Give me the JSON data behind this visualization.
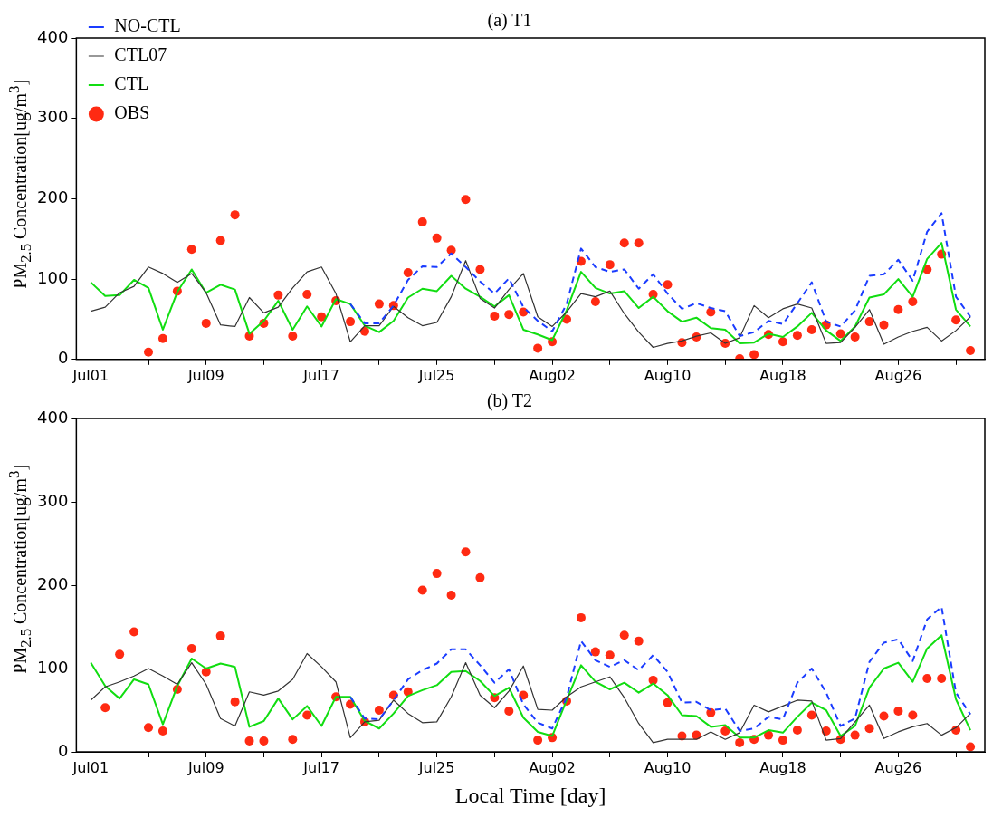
{
  "chart_data": [
    {
      "type": "line",
      "title": "(a) T1",
      "ylabel": "PM$_{2.5}$ Concentration[ug/m$^{3}$]",
      "x": [
        "--07-01",
        "--07-02",
        "--07-03",
        "--07-04",
        "--07-05",
        "--07-06",
        "--07-07",
        "--07-08",
        "--07-09",
        "--07-10",
        "--07-11",
        "--07-12",
        "--07-13",
        "--07-14",
        "--07-15",
        "--07-16",
        "--07-17",
        "--07-18",
        "--07-19",
        "--07-20",
        "--07-21",
        "--07-22",
        "--07-23",
        "--07-24",
        "--07-25",
        "--07-26",
        "--07-27",
        "--07-28",
        "--07-29",
        "--07-30",
        "--07-31",
        "--08-01",
        "--08-02",
        "--08-03",
        "--08-04",
        "--08-05",
        "--08-06",
        "--08-07",
        "--08-08",
        "--08-09",
        "--08-10",
        "--08-11",
        "--08-12",
        "--08-13",
        "--08-14",
        "--08-15",
        "--08-16",
        "--08-17",
        "--08-18",
        "--08-19",
        "--08-20",
        "--08-21",
        "--08-22",
        "--08-23",
        "--08-24",
        "--08-25",
        "--08-26",
        "--08-27",
        "--08-28",
        "--08-29",
        "--08-30",
        "--08-31"
      ],
      "xlim": [
        "--06-30",
        "--09-01"
      ],
      "xticks": [
        {
          "value": "--07-01",
          "label": "Jul01"
        },
        {
          "value": "--07-05",
          "label": null
        },
        {
          "value": "--07-09",
          "label": "Jul09"
        },
        {
          "value": "--07-13",
          "label": null
        },
        {
          "value": "--07-17",
          "label": "Jul17"
        },
        {
          "value": "--07-21",
          "label": null
        },
        {
          "value": "--07-25",
          "label": "Jul25"
        },
        {
          "value": "--07-29",
          "label": null
        },
        {
          "value": "--08-02",
          "label": "Aug02"
        },
        {
          "value": "--08-06",
          "label": null
        },
        {
          "value": "--08-10",
          "label": "Aug10"
        },
        {
          "value": "--08-14",
          "label": null
        },
        {
          "value": "--08-18",
          "label": "Aug18"
        },
        {
          "value": "--08-22",
          "label": null
        },
        {
          "value": "--08-26",
          "label": "Aug26"
        },
        {
          "value": "--08-30",
          "label": null
        }
      ],
      "ylim": [
        0,
        400
      ],
      "yticks": [
        0,
        100,
        200,
        300,
        400
      ],
      "grid": false,
      "legend": "top left",
      "series": [
        {
          "name": "NO-CTL",
          "type": "line",
          "color": "#1a3cff",
          "line_style": "dashed",
          "marker": "none",
          "values": [
            null,
            null,
            null,
            null,
            null,
            null,
            null,
            null,
            null,
            null,
            null,
            null,
            null,
            null,
            null,
            null,
            null,
            null,
            69,
            45,
            45,
            67,
            99,
            116,
            115,
            132,
            115,
            97,
            82,
            101,
            65,
            48,
            35,
            69,
            138,
            115,
            109,
            112,
            88,
            106,
            82,
            63,
            70,
            64,
            60,
            29,
            34,
            48,
            44,
            70,
            96,
            47,
            41,
            61,
            104,
            106,
            124,
            98,
            159,
            182,
            78,
            53
          ]
        },
        {
          "name": "CTL07",
          "type": "line",
          "color": "#333333",
          "line_style": "solid",
          "marker": "none",
          "values": [
            60,
            65,
            83,
            91,
            115,
            107,
            96,
            107,
            83,
            43,
            41,
            77,
            58,
            65,
            89,
            109,
            115,
            82,
            22,
            42,
            42,
            66,
            52,
            42,
            46,
            78,
            123,
            76,
            64,
            87,
            107,
            53,
            41,
            59,
            82,
            78,
            85,
            57,
            34,
            15,
            20,
            23,
            29,
            33,
            20,
            27,
            67,
            52,
            63,
            69,
            64,
            20,
            21,
            40,
            62,
            19,
            28,
            35,
            40,
            23,
            36,
            53
          ]
        },
        {
          "name": "CTL",
          "type": "line",
          "color": "#11dd11",
          "line_style": "solid",
          "marker": "none",
          "values": [
            96,
            79,
            80,
            99,
            89,
            37,
            84,
            112,
            83,
            93,
            87,
            32,
            48,
            73,
            37,
            66,
            41,
            75,
            69,
            42,
            34,
            48,
            77,
            88,
            85,
            104,
            88,
            78,
            66,
            80,
            37,
            31,
            24,
            61,
            109,
            89,
            82,
            85,
            64,
            78,
            60,
            47,
            52,
            39,
            37,
            20,
            21,
            32,
            28,
            41,
            58,
            36,
            23,
            41,
            77,
            81,
            100,
            78,
            125,
            145,
            62,
            41
          ]
        },
        {
          "name": "OBS",
          "type": "scatter",
          "color": "#ff2a12",
          "marker": "circle",
          "values": [
            null,
            null,
            null,
            null,
            9,
            26,
            85,
            137,
            45,
            148,
            180,
            29,
            45,
            80,
            29,
            81,
            53,
            73,
            47,
            35,
            69,
            67,
            108,
            171,
            151,
            136,
            199,
            112,
            54,
            56,
            59,
            14,
            22,
            50,
            122,
            72,
            118,
            145,
            145,
            81,
            93,
            21,
            28,
            59,
            20,
            1,
            6,
            31,
            22,
            30,
            37,
            43,
            32,
            28,
            47,
            43,
            62,
            72,
            112,
            131,
            49,
            11
          ]
        }
      ]
    },
    {
      "type": "line",
      "title": "(b) T2",
      "ylabel": "PM$_{2.5}$ Concentration[ug/m$^{3}$]",
      "xlabel": "Local Time [day]",
      "x": [
        "--07-01",
        "--07-02",
        "--07-03",
        "--07-04",
        "--07-05",
        "--07-06",
        "--07-07",
        "--07-08",
        "--07-09",
        "--07-10",
        "--07-11",
        "--07-12",
        "--07-13",
        "--07-14",
        "--07-15",
        "--07-16",
        "--07-17",
        "--07-18",
        "--07-19",
        "--07-20",
        "--07-21",
        "--07-22",
        "--07-23",
        "--07-24",
        "--07-25",
        "--07-26",
        "--07-27",
        "--07-28",
        "--07-29",
        "--07-30",
        "--07-31",
        "--08-01",
        "--08-02",
        "--08-03",
        "--08-04",
        "--08-05",
        "--08-06",
        "--08-07",
        "--08-08",
        "--08-09",
        "--08-10",
        "--08-11",
        "--08-12",
        "--08-13",
        "--08-14",
        "--08-15",
        "--08-16",
        "--08-17",
        "--08-18",
        "--08-19",
        "--08-20",
        "--08-21",
        "--08-22",
        "--08-23",
        "--08-24",
        "--08-25",
        "--08-26",
        "--08-27",
        "--08-28",
        "--08-29",
        "--08-30",
        "--08-31"
      ],
      "xlim": [
        "--06-30",
        "--09-01"
      ],
      "xticks": [
        {
          "value": "--07-01",
          "label": "Jul01"
        },
        {
          "value": "--07-05",
          "label": null
        },
        {
          "value": "--07-09",
          "label": "Jul09"
        },
        {
          "value": "--07-13",
          "label": null
        },
        {
          "value": "--07-17",
          "label": "Jul17"
        },
        {
          "value": "--07-21",
          "label": null
        },
        {
          "value": "--07-25",
          "label": "Jul25"
        },
        {
          "value": "--07-29",
          "label": null
        },
        {
          "value": "--08-02",
          "label": "Aug02"
        },
        {
          "value": "--08-06",
          "label": null
        },
        {
          "value": "--08-10",
          "label": "Aug10"
        },
        {
          "value": "--08-14",
          "label": null
        },
        {
          "value": "--08-18",
          "label": "Aug18"
        },
        {
          "value": "--08-22",
          "label": null
        },
        {
          "value": "--08-26",
          "label": "Aug26"
        },
        {
          "value": "--08-30",
          "label": null
        }
      ],
      "ylim": [
        0,
        400
      ],
      "yticks": [
        0,
        100,
        200,
        300,
        400
      ],
      "grid": false,
      "series": [
        {
          "type": "line",
          "color": "#1a3cff",
          "line_style": "dashed",
          "marker": "none",
          "values": [
            null,
            null,
            null,
            null,
            null,
            null,
            null,
            null,
            null,
            null,
            null,
            null,
            null,
            null,
            null,
            null,
            null,
            null,
            66,
            40,
            39,
            62,
            87,
            98,
            106,
            123,
            123,
            104,
            83,
            99,
            57,
            35,
            28,
            65,
            133,
            110,
            102,
            110,
            98,
            116,
            96,
            59,
            60,
            50,
            52,
            25,
            28,
            42,
            39,
            83,
            100,
            71,
            31,
            40,
            108,
            131,
            135,
            109,
            159,
            174,
            71,
            45
          ]
        },
        {
          "type": "line",
          "color": "#333333",
          "line_style": "solid",
          "marker": "none",
          "values": [
            62,
            78,
            84,
            91,
            100,
            91,
            81,
            107,
            81,
            40,
            31,
            72,
            68,
            73,
            87,
            118,
            102,
            84,
            17,
            36,
            38,
            62,
            46,
            35,
            36,
            66,
            107,
            68,
            53,
            73,
            103,
            51,
            50,
            66,
            78,
            84,
            90,
            65,
            34,
            11,
            15,
            15,
            15,
            24,
            15,
            23,
            56,
            48,
            55,
            62,
            61,
            14,
            16,
            36,
            56,
            16,
            24,
            30,
            34,
            20,
            29,
            46
          ]
        },
        {
          "type": "line",
          "color": "#11dd11",
          "line_style": "solid",
          "marker": "none",
          "values": [
            107,
            79,
            64,
            87,
            81,
            33,
            79,
            112,
            100,
            106,
            102,
            30,
            37,
            64,
            39,
            55,
            31,
            66,
            66,
            37,
            28,
            46,
            67,
            74,
            80,
            96,
            97,
            85,
            67,
            77,
            41,
            24,
            19,
            62,
            104,
            84,
            75,
            83,
            71,
            82,
            68,
            44,
            43,
            30,
            32,
            17,
            17,
            26,
            23,
            42,
            59,
            50,
            19,
            31,
            77,
            100,
            107,
            84,
            124,
            140,
            63,
            26
          ]
        },
        {
          "type": "scatter",
          "color": "#ff2a12",
          "marker": "circle",
          "values": [
            null,
            53,
            117,
            144,
            29,
            25,
            75,
            124,
            96,
            139,
            60,
            13,
            13,
            null,
            15,
            44,
            null,
            66,
            57,
            36,
            50,
            68,
            72,
            194,
            214,
            188,
            240,
            209,
            65,
            49,
            68,
            14,
            17,
            61,
            161,
            120,
            116,
            140,
            133,
            86,
            59,
            19,
            20,
            47,
            25,
            11,
            15,
            20,
            14,
            26,
            44,
            25,
            15,
            20,
            28,
            43,
            49,
            44,
            88,
            88,
            26,
            6
          ]
        }
      ]
    }
  ]
}
